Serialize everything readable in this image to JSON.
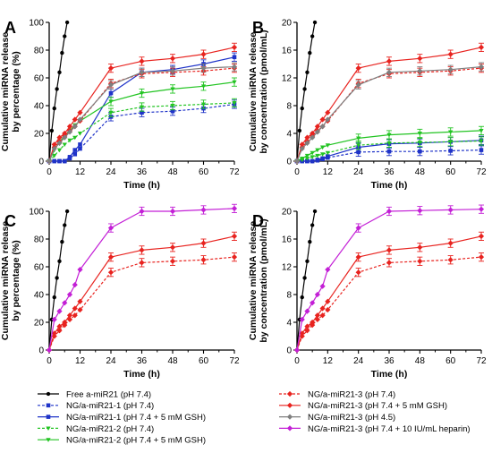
{
  "chart_data": [
    {
      "type": "line",
      "panel": "A",
      "xlabel": "Time (h)",
      "ylabel": [
        "Cumulative miRNA release",
        "by percentage (%)"
      ],
      "xlim": [
        0,
        72
      ],
      "ylim": [
        0,
        100
      ],
      "xticks": [
        0,
        12,
        24,
        36,
        48,
        60,
        72
      ],
      "yticks": [
        0,
        20,
        40,
        60,
        80,
        100
      ],
      "series": [
        {
          "key": "free",
          "x": [
            0,
            1,
            2,
            3,
            4,
            5,
            6,
            7
          ],
          "y": [
            0,
            22,
            38,
            52,
            64,
            78,
            90,
            100
          ]
        },
        {
          "key": "ng1",
          "x": [
            0,
            2,
            4,
            6,
            8,
            10,
            12,
            24,
            36,
            48,
            60,
            72
          ],
          "y": [
            0,
            0,
            0,
            0,
            2,
            5,
            9,
            32,
            35,
            36,
            38,
            41
          ]
        },
        {
          "key": "ng1gsh",
          "x": [
            0,
            2,
            4,
            6,
            8,
            10,
            12,
            24,
            36,
            48,
            60,
            72
          ],
          "y": [
            0,
            0,
            0,
            0,
            3,
            8,
            12,
            49,
            64,
            66,
            70,
            75
          ]
        },
        {
          "key": "ng2",
          "x": [
            0,
            2,
            4,
            6,
            8,
            10,
            12,
            24,
            36,
            48,
            60,
            72
          ],
          "y": [
            0,
            4,
            8,
            12,
            15,
            17,
            20,
            35,
            39,
            40,
            41,
            42
          ]
        },
        {
          "key": "ng2gsh",
          "x": [
            0,
            2,
            4,
            6,
            8,
            10,
            12,
            24,
            36,
            48,
            60,
            72
          ],
          "y": [
            0,
            8,
            14,
            18,
            22,
            26,
            29,
            43,
            49,
            52,
            54,
            57
          ]
        },
        {
          "key": "ng3",
          "x": [
            0,
            2,
            4,
            6,
            8,
            10,
            12,
            24,
            36,
            48,
            60,
            72
          ],
          "y": [
            0,
            10,
            14,
            18,
            22,
            25,
            29,
            56,
            63,
            64,
            65,
            67
          ]
        },
        {
          "key": "ng3gsh",
          "x": [
            0,
            2,
            4,
            6,
            8,
            10,
            12,
            24,
            36,
            48,
            60,
            72
          ],
          "y": [
            0,
            12,
            17,
            20,
            25,
            30,
            35,
            67,
            72,
            74,
            77,
            82
          ]
        },
        {
          "key": "ng3ph45",
          "x": [
            0,
            2,
            4,
            6,
            8,
            10,
            12,
            24,
            36,
            48,
            60,
            72
          ],
          "y": [
            0,
            9,
            13,
            17,
            21,
            25,
            30,
            55,
            64,
            65,
            67,
            68
          ]
        }
      ]
    },
    {
      "type": "line",
      "panel": "B",
      "xlabel": "Time (h)",
      "ylabel": [
        "Cumulative miRNA release",
        "by concentration (pmol/mL)"
      ],
      "xlim": [
        0,
        72
      ],
      "ylim": [
        0,
        20
      ],
      "xticks": [
        0,
        12,
        24,
        36,
        48,
        60,
        72
      ],
      "yticks": [
        0,
        4,
        8,
        12,
        16,
        20
      ],
      "series": [
        {
          "key": "free",
          "x": [
            0,
            1,
            2,
            3,
            4,
            5,
            6,
            7
          ],
          "y": [
            0,
            4.4,
            7.6,
            10.4,
            12.8,
            15.6,
            18,
            20
          ]
        },
        {
          "key": "ng1",
          "x": [
            0,
            2,
            4,
            6,
            8,
            10,
            12,
            24,
            36,
            48,
            60,
            72
          ],
          "y": [
            0,
            0,
            0,
            0,
            0.1,
            0.3,
            0.5,
            1.3,
            1.4,
            1.4,
            1.5,
            1.6
          ]
        },
        {
          "key": "ng1gsh",
          "x": [
            0,
            2,
            4,
            6,
            8,
            10,
            12,
            24,
            36,
            48,
            60,
            72
          ],
          "y": [
            0,
            0,
            0,
            0,
            0.2,
            0.4,
            0.7,
            2.0,
            2.5,
            2.6,
            2.8,
            3.0
          ]
        },
        {
          "key": "ng2",
          "x": [
            0,
            2,
            4,
            6,
            8,
            10,
            12,
            24,
            36,
            48,
            60,
            72
          ],
          "y": [
            0,
            0.2,
            0.4,
            0.6,
            0.8,
            1.0,
            1.2,
            2.3,
            2.6,
            2.7,
            2.8,
            2.9
          ]
        },
        {
          "key": "ng2gsh",
          "x": [
            0,
            2,
            4,
            6,
            8,
            10,
            12,
            24,
            36,
            48,
            60,
            72
          ],
          "y": [
            0,
            0.4,
            0.8,
            1.2,
            1.6,
            2.0,
            2.3,
            3.3,
            3.8,
            4.0,
            4.2,
            4.4
          ]
        },
        {
          "key": "ng3",
          "x": [
            0,
            2,
            4,
            6,
            8,
            10,
            12,
            24,
            36,
            48,
            60,
            72
          ],
          "y": [
            0,
            2.0,
            2.8,
            3.6,
            4.4,
            5.0,
            5.8,
            11.2,
            12.6,
            12.8,
            13.0,
            13.4
          ]
        },
        {
          "key": "ng3gsh",
          "x": [
            0,
            2,
            4,
            6,
            8,
            10,
            12,
            24,
            36,
            48,
            60,
            72
          ],
          "y": [
            0,
            2.4,
            3.4,
            4.0,
            5.0,
            6.0,
            7.0,
            13.4,
            14.4,
            14.8,
            15.4,
            16.4
          ]
        },
        {
          "key": "ng3ph45",
          "x": [
            0,
            2,
            4,
            6,
            8,
            10,
            12,
            24,
            36,
            48,
            60,
            72
          ],
          "y": [
            0,
            1.8,
            2.6,
            3.4,
            4.2,
            5.0,
            6.0,
            11.0,
            12.8,
            13.0,
            13.2,
            13.6
          ]
        }
      ]
    },
    {
      "type": "line",
      "panel": "C",
      "xlabel": "Time (h)",
      "ylabel": [
        "Cumulative miRNA release",
        "by percentage (%)"
      ],
      "xlim": [
        0,
        72
      ],
      "ylim": [
        0,
        100
      ],
      "xticks": [
        0,
        12,
        24,
        36,
        48,
        60,
        72
      ],
      "yticks": [
        0,
        20,
        40,
        60,
        80,
        100
      ],
      "series": [
        {
          "key": "free",
          "x": [
            0,
            1,
            2,
            3,
            4,
            5,
            6,
            7
          ],
          "y": [
            0,
            22,
            38,
            52,
            64,
            78,
            90,
            100
          ]
        },
        {
          "key": "ng3",
          "x": [
            0,
            2,
            4,
            6,
            8,
            10,
            12,
            24,
            36,
            48,
            60,
            72
          ],
          "y": [
            0,
            10,
            14,
            18,
            22,
            25,
            29,
            56,
            63,
            64,
            65,
            67
          ]
        },
        {
          "key": "ng3gsh",
          "x": [
            0,
            2,
            4,
            6,
            8,
            10,
            12,
            24,
            36,
            48,
            60,
            72
          ],
          "y": [
            0,
            12,
            17,
            20,
            25,
            30,
            35,
            67,
            72,
            74,
            77,
            82
          ]
        },
        {
          "key": "ng3hep",
          "x": [
            0,
            2,
            4,
            6,
            8,
            10,
            12,
            24,
            36,
            48,
            60,
            72
          ],
          "y": [
            0,
            22,
            28,
            34,
            40,
            47,
            58,
            88,
            100,
            100,
            101,
            102
          ]
        }
      ]
    },
    {
      "type": "line",
      "panel": "D",
      "xlabel": "Time (h)",
      "ylabel": [
        "Cumulative miRNA release",
        "by concentration (pmol/mL)"
      ],
      "xlim": [
        0,
        72
      ],
      "ylim": [
        0,
        20
      ],
      "xticks": [
        0,
        12,
        24,
        36,
        48,
        60,
        72
      ],
      "yticks": [
        0,
        4,
        8,
        12,
        16,
        20
      ],
      "series": [
        {
          "key": "free",
          "x": [
            0,
            1,
            2,
            3,
            4,
            5,
            6,
            7
          ],
          "y": [
            0,
            4.4,
            7.6,
            10.4,
            12.8,
            15.6,
            18,
            20
          ]
        },
        {
          "key": "ng3",
          "x": [
            0,
            2,
            4,
            6,
            8,
            10,
            12,
            24,
            36,
            48,
            60,
            72
          ],
          "y": [
            0,
            2.0,
            2.8,
            3.6,
            4.4,
            5.0,
            5.8,
            11.2,
            12.6,
            12.8,
            13.0,
            13.4
          ]
        },
        {
          "key": "ng3gsh",
          "x": [
            0,
            2,
            4,
            6,
            8,
            10,
            12,
            24,
            36,
            48,
            60,
            72
          ],
          "y": [
            0,
            2.4,
            3.4,
            4.0,
            5.0,
            6.0,
            7.0,
            13.4,
            14.4,
            14.8,
            15.4,
            16.4
          ]
        },
        {
          "key": "ng3hep",
          "x": [
            0,
            2,
            4,
            6,
            8,
            10,
            12,
            24,
            36,
            48,
            60,
            72
          ],
          "y": [
            0,
            4.4,
            5.6,
            6.8,
            8.0,
            9.2,
            11.6,
            17.6,
            20,
            20.1,
            20.2,
            20.3
          ]
        }
      ]
    }
  ],
  "styles": {
    "free": {
      "color": "#000000",
      "dash": false,
      "marker": "dot"
    },
    "ng1": {
      "color": "#1f33c8",
      "dash": true,
      "marker": "square"
    },
    "ng1gsh": {
      "color": "#1f33c8",
      "dash": false,
      "marker": "square"
    },
    "ng2": {
      "color": "#22c422",
      "dash": true,
      "marker": "triangle"
    },
    "ng2gsh": {
      "color": "#22c422",
      "dash": false,
      "marker": "triangle"
    },
    "ng3": {
      "color": "#e8231f",
      "dash": true,
      "marker": "diamond"
    },
    "ng3gsh": {
      "color": "#e8231f",
      "dash": false,
      "marker": "diamond"
    },
    "ng3ph45": {
      "color": "#7f7f7f",
      "dash": false,
      "marker": "diamond"
    },
    "ng3hep": {
      "color": "#c31fd6",
      "dash": false,
      "marker": "diamond"
    }
  },
  "legend": [
    {
      "key": "free",
      "label": "Free a-miR21 (pH 7.4)"
    },
    {
      "key": "ng3",
      "label": "NG/a-miR21-3 (pH 7.4)"
    },
    {
      "key": "ng1",
      "label": "NG/a-miR21-1 (pH 7.4)"
    },
    {
      "key": "ng3gsh",
      "label": "NG/a-miR21-3 (pH 7.4 + 5 mM GSH)"
    },
    {
      "key": "ng1gsh",
      "label": "NG/a-miR21-1 (pH 7.4 + 5 mM GSH)"
    },
    {
      "key": "ng3ph45",
      "label": "NG/a-miR21-3 (pH 4.5)"
    },
    {
      "key": "ng2",
      "label": "NG/a-miR21-2 (pH 7.4)"
    },
    {
      "key": "ng3hep",
      "label": "NG/a-miR21-3 (pH 7.4 + 10 IU/mL heparin)"
    },
    {
      "key": "ng2gsh",
      "label": "NG/a-miR21-2 (pH 7.4 + 5 mM GSH)"
    }
  ]
}
